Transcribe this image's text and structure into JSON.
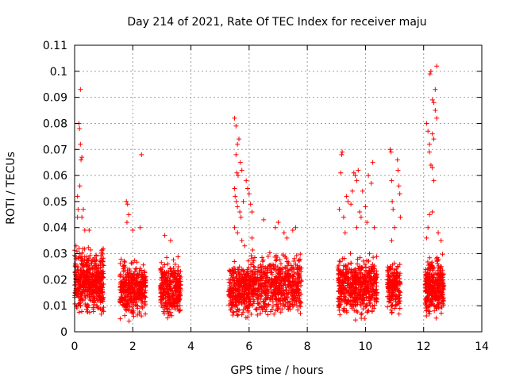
{
  "chart_data": {
    "type": "scatter",
    "title": "Day 214 of 2021, Rate Of TEC Index for receiver maju",
    "xlabel": "GPS time / hours",
    "ylabel": "ROTI / TECUs",
    "xlim": [
      0,
      14
    ],
    "ylim": [
      0,
      0.11
    ],
    "xticks": [
      "0",
      "2",
      "4",
      "6",
      "8",
      "10",
      "12",
      "14"
    ],
    "yticks": [
      "0",
      "0.01",
      "0.02",
      "0.03",
      "0.04",
      "0.05",
      "0.06",
      "0.07",
      "0.08",
      "0.09",
      "0.1",
      "0.11"
    ],
    "grid": true,
    "marker": "plus",
    "color": "#ff0000",
    "clusters": [
      {
        "x_range": [
          0.0,
          1.0
        ],
        "y_range": [
          0.004,
          0.035
        ],
        "count": 520
      },
      {
        "x_range": [
          1.55,
          2.45
        ],
        "y_range": [
          0.003,
          0.03
        ],
        "count": 380
      },
      {
        "x_range": [
          2.95,
          3.65
        ],
        "y_range": [
          0.003,
          0.03
        ],
        "count": 320
      },
      {
        "x_range": [
          5.3,
          6.05
        ],
        "y_range": [
          0.003,
          0.03
        ],
        "count": 330
      },
      {
        "x_range": [
          6.05,
          7.8
        ],
        "y_range": [
          0.003,
          0.033
        ],
        "count": 620
      },
      {
        "x_range": [
          9.05,
          10.4
        ],
        "y_range": [
          0.003,
          0.032
        ],
        "count": 560
      },
      {
        "x_range": [
          10.75,
          11.2
        ],
        "y_range": [
          0.005,
          0.03
        ],
        "count": 200
      },
      {
        "x_range": [
          12.05,
          12.7
        ],
        "y_range": [
          0.003,
          0.032
        ],
        "count": 360
      }
    ],
    "outliers": [
      {
        "x": 0.05,
        "y": 0.033
      },
      {
        "x": 0.1,
        "y": 0.052
      },
      {
        "x": 0.12,
        "y": 0.047
      },
      {
        "x": 0.15,
        "y": 0.08
      },
      {
        "x": 0.17,
        "y": 0.078
      },
      {
        "x": 0.2,
        "y": 0.093
      },
      {
        "x": 0.2,
        "y": 0.072
      },
      {
        "x": 0.22,
        "y": 0.066
      },
      {
        "x": 0.25,
        "y": 0.067
      },
      {
        "x": 0.18,
        "y": 0.056
      },
      {
        "x": 0.25,
        "y": 0.044
      },
      {
        "x": 0.3,
        "y": 0.047
      },
      {
        "x": 0.35,
        "y": 0.039
      },
      {
        "x": 0.5,
        "y": 0.039
      },
      {
        "x": 0.1,
        "y": 0.044
      },
      {
        "x": 1.78,
        "y": 0.05
      },
      {
        "x": 1.82,
        "y": 0.049
      },
      {
        "x": 1.86,
        "y": 0.045
      },
      {
        "x": 1.8,
        "y": 0.042
      },
      {
        "x": 2.0,
        "y": 0.039
      },
      {
        "x": 2.3,
        "y": 0.068
      },
      {
        "x": 2.25,
        "y": 0.04
      },
      {
        "x": 3.1,
        "y": 0.037
      },
      {
        "x": 3.3,
        "y": 0.035
      },
      {
        "x": 5.5,
        "y": 0.082
      },
      {
        "x": 5.55,
        "y": 0.079
      },
      {
        "x": 5.6,
        "y": 0.072
      },
      {
        "x": 5.65,
        "y": 0.074
      },
      {
        "x": 5.55,
        "y": 0.068
      },
      {
        "x": 5.58,
        "y": 0.061
      },
      {
        "x": 5.62,
        "y": 0.06
      },
      {
        "x": 5.7,
        "y": 0.065
      },
      {
        "x": 5.75,
        "y": 0.062
      },
      {
        "x": 5.5,
        "y": 0.055
      },
      {
        "x": 5.52,
        "y": 0.052
      },
      {
        "x": 5.56,
        "y": 0.05
      },
      {
        "x": 5.6,
        "y": 0.048
      },
      {
        "x": 5.68,
        "y": 0.046
      },
      {
        "x": 5.72,
        "y": 0.044
      },
      {
        "x": 5.8,
        "y": 0.05
      },
      {
        "x": 5.9,
        "y": 0.058
      },
      {
        "x": 5.95,
        "y": 0.055
      },
      {
        "x": 6.0,
        "y": 0.053
      },
      {
        "x": 6.05,
        "y": 0.049
      },
      {
        "x": 6.1,
        "y": 0.046
      },
      {
        "x": 5.5,
        "y": 0.04
      },
      {
        "x": 5.6,
        "y": 0.038
      },
      {
        "x": 5.75,
        "y": 0.035
      },
      {
        "x": 5.85,
        "y": 0.033
      },
      {
        "x": 6.1,
        "y": 0.036
      },
      {
        "x": 6.5,
        "y": 0.043
      },
      {
        "x": 6.9,
        "y": 0.04
      },
      {
        "x": 7.0,
        "y": 0.042
      },
      {
        "x": 7.2,
        "y": 0.038
      },
      {
        "x": 7.3,
        "y": 0.036
      },
      {
        "x": 7.5,
        "y": 0.039
      },
      {
        "x": 7.6,
        "y": 0.04
      },
      {
        "x": 9.1,
        "y": 0.047
      },
      {
        "x": 9.15,
        "y": 0.061
      },
      {
        "x": 9.18,
        "y": 0.068
      },
      {
        "x": 9.2,
        "y": 0.069
      },
      {
        "x": 9.25,
        "y": 0.044
      },
      {
        "x": 9.35,
        "y": 0.052
      },
      {
        "x": 9.4,
        "y": 0.05
      },
      {
        "x": 9.5,
        "y": 0.049
      },
      {
        "x": 9.55,
        "y": 0.054
      },
      {
        "x": 9.6,
        "y": 0.061
      },
      {
        "x": 9.65,
        "y": 0.06
      },
      {
        "x": 9.7,
        "y": 0.058
      },
      {
        "x": 9.75,
        "y": 0.062
      },
      {
        "x": 9.8,
        "y": 0.046
      },
      {
        "x": 9.85,
        "y": 0.044
      },
      {
        "x": 9.9,
        "y": 0.054
      },
      {
        "x": 10.0,
        "y": 0.048
      },
      {
        "x": 10.05,
        "y": 0.042
      },
      {
        "x": 10.1,
        "y": 0.06
      },
      {
        "x": 10.2,
        "y": 0.057
      },
      {
        "x": 10.25,
        "y": 0.065
      },
      {
        "x": 10.3,
        "y": 0.04
      },
      {
        "x": 9.3,
        "y": 0.038
      },
      {
        "x": 9.7,
        "y": 0.04
      },
      {
        "x": 10.85,
        "y": 0.07
      },
      {
        "x": 10.88,
        "y": 0.069
      },
      {
        "x": 10.9,
        "y": 0.058
      },
      {
        "x": 10.92,
        "y": 0.05
      },
      {
        "x": 10.95,
        "y": 0.047
      },
      {
        "x": 11.0,
        "y": 0.04
      },
      {
        "x": 11.1,
        "y": 0.066
      },
      {
        "x": 11.12,
        "y": 0.062
      },
      {
        "x": 11.15,
        "y": 0.056
      },
      {
        "x": 11.18,
        "y": 0.053
      },
      {
        "x": 11.2,
        "y": 0.044
      },
      {
        "x": 10.9,
        "y": 0.035
      },
      {
        "x": 12.1,
        "y": 0.08
      },
      {
        "x": 12.15,
        "y": 0.077
      },
      {
        "x": 12.2,
        "y": 0.072
      },
      {
        "x": 12.22,
        "y": 0.099
      },
      {
        "x": 12.25,
        "y": 0.1
      },
      {
        "x": 12.3,
        "y": 0.089
      },
      {
        "x": 12.35,
        "y": 0.088
      },
      {
        "x": 12.4,
        "y": 0.093
      },
      {
        "x": 12.45,
        "y": 0.102
      },
      {
        "x": 12.4,
        "y": 0.085
      },
      {
        "x": 12.45,
        "y": 0.082
      },
      {
        "x": 12.3,
        "y": 0.076
      },
      {
        "x": 12.35,
        "y": 0.074
      },
      {
        "x": 12.2,
        "y": 0.069
      },
      {
        "x": 12.25,
        "y": 0.064
      },
      {
        "x": 12.3,
        "y": 0.063
      },
      {
        "x": 12.35,
        "y": 0.058
      },
      {
        "x": 12.2,
        "y": 0.045
      },
      {
        "x": 12.3,
        "y": 0.046
      },
      {
        "x": 12.15,
        "y": 0.04
      },
      {
        "x": 12.5,
        "y": 0.038
      },
      {
        "x": 12.6,
        "y": 0.035
      },
      {
        "x": 12.1,
        "y": 0.036
      }
    ]
  }
}
